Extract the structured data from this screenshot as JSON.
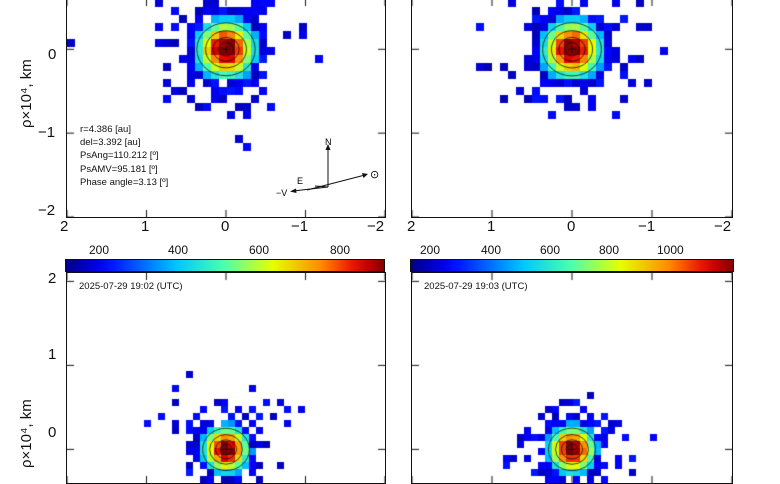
{
  "figure": {
    "ylabel_top": "ρ×10⁴, km",
    "ylabel_bottom": "ρ×10⁴, km"
  },
  "panel_tl": {
    "x_ticks": [
      "2",
      "1",
      "0",
      "−1",
      "−2"
    ],
    "y_ticks": [
      "0",
      "−1",
      "−2"
    ],
    "info": {
      "r": "r=4.386 [au]",
      "del": "del=3.392 [au]",
      "psang": "PsAng=110.212 [º]",
      "psamv": "PsAMV=95.181 [º]",
      "phase": "Phase angle=3.13 [º]"
    },
    "compass": {
      "north": "N",
      "east": "E",
      "velocity": "−V",
      "sun": "⊙"
    }
  },
  "panel_tr": {
    "x_ticks": [
      "2",
      "1",
      "0",
      "−1",
      "−2"
    ]
  },
  "panel_bl": {
    "y_ticks": [
      "2",
      "1",
      "0"
    ],
    "timestamp": "2025-07-29 19:02  (UTC)",
    "colorbar_ticks": [
      "200",
      "400",
      "600",
      "800"
    ]
  },
  "panel_br": {
    "timestamp": "2025-07-29 19:03  (UTC)",
    "colorbar_ticks": [
      "200",
      "400",
      "600",
      "800",
      "1000"
    ]
  },
  "chart_data": [
    {
      "type": "heatmap",
      "panel": "top-left",
      "xlim": [
        2,
        -2
      ],
      "ylim": [
        -2,
        0.6
      ],
      "center": [
        0,
        0
      ],
      "spread": 0.35
    },
    {
      "type": "heatmap",
      "panel": "top-right",
      "xlim": [
        2,
        -2
      ],
      "ylim": [
        -2,
        0.6
      ],
      "center": [
        0,
        0
      ],
      "spread": 0.35
    },
    {
      "type": "heatmap",
      "panel": "bottom-left",
      "xlim": [
        2,
        -2
      ],
      "ylim": [
        -0.4,
        2.1
      ],
      "center": [
        0,
        0
      ],
      "spread": 0.28,
      "colorbar_ticks": [
        200,
        400,
        600,
        800
      ]
    },
    {
      "type": "heatmap",
      "panel": "bottom-right",
      "xlim": [
        2,
        -2
      ],
      "ylim": [
        -0.4,
        2.1
      ],
      "center": [
        0,
        0
      ],
      "spread": 0.28,
      "colorbar_ticks": [
        200,
        400,
        600,
        800,
        1000
      ]
    }
  ]
}
